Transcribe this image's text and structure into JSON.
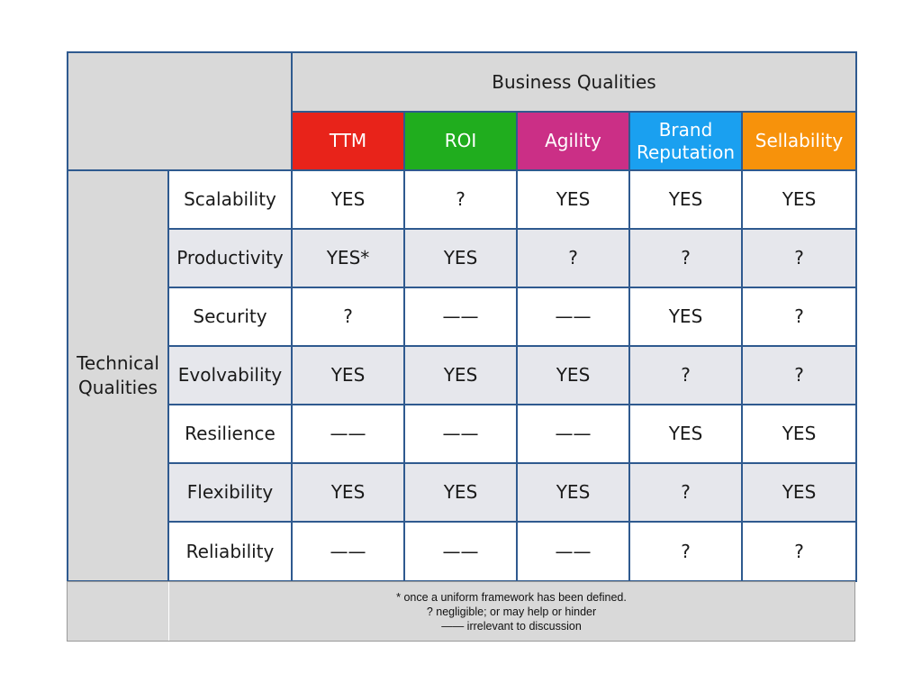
{
  "header": {
    "business_qualities": "Business Qualities",
    "technical_qualities": "Technical Qualities"
  },
  "columns": [
    {
      "label": "TTM",
      "color": "#e8231a"
    },
    {
      "label": "ROI",
      "color": "#20ad1e"
    },
    {
      "label": "Agility",
      "color": "#cb2f86"
    },
    {
      "label": "Brand Reputation",
      "color": "#1aa0f0"
    },
    {
      "label": "Sellability",
      "color": "#f7920b"
    }
  ],
  "rows": [
    {
      "label": "Scalability",
      "values": [
        "YES",
        "?",
        "YES",
        "YES",
        "YES"
      ]
    },
    {
      "label": "Productivity",
      "values": [
        "YES*",
        "YES",
        "?",
        "?",
        "?"
      ]
    },
    {
      "label": "Security",
      "values": [
        "?",
        "——",
        "——",
        "YES",
        "?"
      ]
    },
    {
      "label": "Evolvability",
      "values": [
        "YES",
        "YES",
        "YES",
        "?",
        "?"
      ]
    },
    {
      "label": "Resilience",
      "values": [
        "——",
        "——",
        "——",
        "YES",
        "YES"
      ]
    },
    {
      "label": "Flexibility",
      "values": [
        "YES",
        "YES",
        "YES",
        "?",
        "YES"
      ]
    },
    {
      "label": "Reliability",
      "values": [
        "——",
        "——",
        "——",
        "?",
        "?"
      ]
    }
  ],
  "legend": [
    "* once a uniform framework has been defined.",
    "? negligible; or may help or hinder",
    "—— irrelevant to discussion"
  ]
}
